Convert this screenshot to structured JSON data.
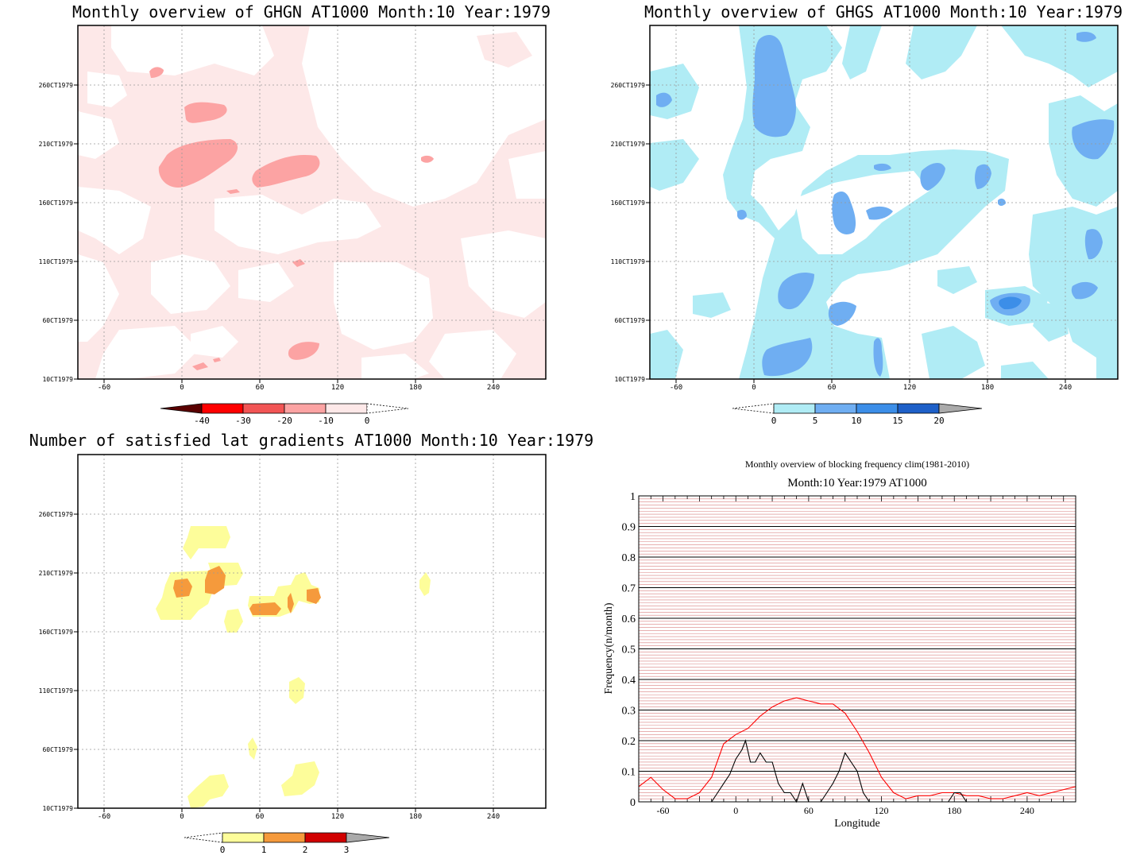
{
  "panels": {
    "ghgn": {
      "title": "Monthly overview of GHGN AT1000 Month:10 Year:1979",
      "xticks": [
        "-60",
        "0",
        "60",
        "120",
        "180",
        "240"
      ],
      "yticks": [
        "10CT1979",
        "60CT1979",
        "110CT1979",
        "160CT1979",
        "210CT1979",
        "260CT1979"
      ],
      "colorbar": {
        "labels": [
          "-40",
          "-30",
          "-20",
          "-10",
          "0"
        ],
        "colors": [
          "#5a0000",
          "#ff0000",
          "#f25555",
          "#fca3a3",
          "#fde8e8"
        ]
      }
    },
    "ghgs": {
      "title": "Monthly overview of GHGS AT1000 Month:10 Year:1979",
      "xticks": [
        "-60",
        "0",
        "60",
        "120",
        "180",
        "240"
      ],
      "yticks": [
        "10CT1979",
        "60CT1979",
        "110CT1979",
        "160CT1979",
        "210CT1979",
        "260CT1979"
      ],
      "colorbar": {
        "labels": [
          "0",
          "5",
          "10",
          "15",
          "20"
        ],
        "colors": [
          "#b0ecf5",
          "#6faef2",
          "#3c8ee8",
          "#1e60c8",
          "#aaaaaa"
        ]
      }
    },
    "grad": {
      "title": "Number of satisfied lat gradients AT1000 Month:10 Year:1979",
      "xticks": [
        "-60",
        "0",
        "60",
        "120",
        "180",
        "240"
      ],
      "yticks": [
        "10CT1979",
        "60CT1979",
        "110CT1979",
        "160CT1979",
        "210CT1979",
        "260CT1979"
      ],
      "colorbar": {
        "labels": [
          "0",
          "1",
          "2",
          "3"
        ],
        "colors": [
          "#fdfd9a",
          "#f59a3c",
          "#d10000",
          "#aaaaaa"
        ]
      }
    },
    "freq": {
      "title": "Monthly overview of blocking frequency clim(1981-2010)",
      "subtitle": "Month:10 Year:1979  AT1000"
    }
  },
  "chart_data": [
    {
      "type": "heatmap",
      "title": "Monthly overview of GHGN AT1000 Month:10 Year:1979",
      "x_tick_labels": [
        -60,
        0,
        60,
        120,
        180,
        240
      ],
      "y_tick_labels": [
        "10CT1979",
        "60CT1979",
        "110CT1979",
        "160CT1979",
        "210CT1979",
        "260CT1979"
      ],
      "xlim": [
        -80,
        280
      ],
      "levels": [
        -40,
        -30,
        -20,
        -10,
        0
      ],
      "colors": [
        "#5a0000",
        "#ff0000",
        "#f25555",
        "#fca3a3",
        "#fde8e8"
      ]
    },
    {
      "type": "heatmap",
      "title": "Monthly overview of GHGS AT1000 Month:10 Year:1979",
      "x_tick_labels": [
        -60,
        0,
        60,
        120,
        180,
        240
      ],
      "y_tick_labels": [
        "10CT1979",
        "60CT1979",
        "110CT1979",
        "160CT1979",
        "210CT1979",
        "260CT1979"
      ],
      "xlim": [
        -80,
        280
      ],
      "levels": [
        0,
        5,
        10,
        15,
        20
      ],
      "colors": [
        "#b0ecf5",
        "#6faef2",
        "#3c8ee8",
        "#1e60c8",
        "#aaaaaa"
      ]
    },
    {
      "type": "heatmap",
      "title": "Number of satisfied lat gradients AT1000 Month:10 Year:1979",
      "x_tick_labels": [
        -60,
        0,
        60,
        120,
        180,
        240
      ],
      "y_tick_labels": [
        "10CT1979",
        "60CT1979",
        "110CT1979",
        "160CT1979",
        "210CT1979",
        "260CT1979"
      ],
      "xlim": [
        -80,
        280
      ],
      "levels": [
        0,
        1,
        2,
        3
      ],
      "colors": [
        "#fdfd9a",
        "#f59a3c",
        "#d10000",
        "#aaaaaa"
      ]
    },
    {
      "type": "line",
      "title": "Monthly overview of blocking frequency clim(1981-2010)",
      "subtitle": "Month:10 Year:1979  AT1000",
      "xlabel": "Longitude",
      "ylabel": "Frequency(n/month)",
      "xlim": [
        -80,
        280
      ],
      "ylim": [
        0,
        1
      ],
      "x_ticks": [
        -60,
        0,
        60,
        120,
        180,
        240
      ],
      "y_ticks": [
        0,
        0.1,
        0.2,
        0.3,
        0.4,
        0.5,
        0.6,
        0.7,
        0.8,
        0.9,
        1
      ],
      "series": [
        {
          "color": "#ff0000",
          "x": [
            -80,
            -70,
            -60,
            -50,
            -40,
            -30,
            -20,
            -10,
            0,
            10,
            20,
            30,
            40,
            50,
            60,
            70,
            80,
            90,
            100,
            110,
            120,
            130,
            140,
            150,
            160,
            170,
            180,
            190,
            200,
            210,
            220,
            230,
            240,
            250,
            260,
            270,
            280
          ],
          "y": [
            0.05,
            0.08,
            0.04,
            0.01,
            0.01,
            0.03,
            0.08,
            0.19,
            0.22,
            0.24,
            0.28,
            0.31,
            0.33,
            0.34,
            0.33,
            0.32,
            0.32,
            0.29,
            0.23,
            0.16,
            0.08,
            0.03,
            0.01,
            0.02,
            0.02,
            0.03,
            0.03,
            0.02,
            0.02,
            0.01,
            0.01,
            0.02,
            0.03,
            0.02,
            0.03,
            0.04,
            0.05
          ]
        },
        {
          "color": "#000000",
          "x": [
            -20,
            -15,
            -10,
            -5,
            0,
            5,
            8,
            12,
            16,
            20,
            25,
            30,
            35,
            40,
            45,
            50,
            55,
            60,
            65,
            70,
            75,
            80,
            85,
            90,
            95,
            100,
            105,
            110,
            175,
            180,
            185,
            190
          ],
          "y": [
            0,
            0.03,
            0.06,
            0.09,
            0.14,
            0.17,
            0.2,
            0.13,
            0.13,
            0.16,
            0.13,
            0.13,
            0.06,
            0.03,
            0.03,
            0,
            0.06,
            0,
            0,
            0,
            0.03,
            0.06,
            0.1,
            0.16,
            0.13,
            0.1,
            0.03,
            0,
            0,
            0.03,
            0.03,
            0
          ]
        }
      ]
    }
  ]
}
